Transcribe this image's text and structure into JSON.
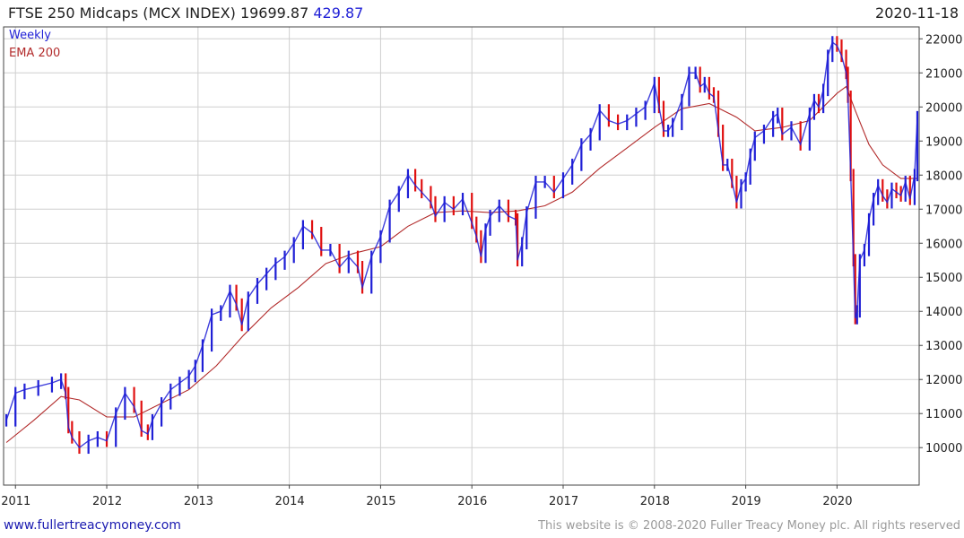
{
  "header": {
    "title": "FTSE 250 Midcaps (MCX INDEX)",
    "last_value": "19699.87",
    "change": "429.87",
    "date": "2020-11-18"
  },
  "legend": {
    "series_label": "Weekly",
    "ema_label": "EMA 200"
  },
  "footer": {
    "url": "www.fullertreacymoney.com",
    "copyright": "This website is © 2008-2020 Fuller Treacy Money plc. All rights reserved"
  },
  "colors": {
    "up": "#1f1fd6",
    "down": "#e01010",
    "ema": "#b22b2b",
    "grid": "#cfcfcf",
    "axis": "#444444"
  },
  "chart_data": {
    "type": "line",
    "interval": "weekly",
    "title": "FTSE 250 Midcaps (MCX INDEX)",
    "xlabel": "",
    "ylabel": "",
    "x_range": [
      2010.87,
      2020.9
    ],
    "y_range": [
      8900,
      22350
    ],
    "ylim": [
      8900,
      22350
    ],
    "y_ticks": [
      10000,
      11000,
      12000,
      13000,
      14000,
      15000,
      16000,
      17000,
      18000,
      19000,
      20000,
      21000,
      22000
    ],
    "x_ticks": [
      2011,
      2012,
      2013,
      2014,
      2015,
      2016,
      2017,
      2018,
      2019,
      2020
    ],
    "grid": true,
    "y_axis_side": "right",
    "legend_position": "top-left",
    "series": [
      {
        "name": "Weekly",
        "x": [
          2010.9,
          2011.0,
          2011.1,
          2011.25,
          2011.4,
          2011.5,
          2011.55,
          2011.58,
          2011.62,
          2011.7,
          2011.8,
          2011.9,
          2012.0,
          2012.1,
          2012.2,
          2012.3,
          2012.38,
          2012.45,
          2012.5,
          2012.6,
          2012.7,
          2012.8,
          2012.9,
          2012.97,
          2013.05,
          2013.15,
          2013.25,
          2013.35,
          2013.42,
          2013.48,
          2013.55,
          2013.65,
          2013.75,
          2013.85,
          2013.95,
          2014.05,
          2014.15,
          2014.25,
          2014.35,
          2014.45,
          2014.55,
          2014.65,
          2014.75,
          2014.8,
          2014.9,
          2015.0,
          2015.1,
          2015.2,
          2015.3,
          2015.38,
          2015.45,
          2015.55,
          2015.6,
          2015.7,
          2015.8,
          2015.9,
          2016.0,
          2016.05,
          2016.1,
          2016.15,
          2016.2,
          2016.3,
          2016.4,
          2016.48,
          2016.5,
          2016.55,
          2016.6,
          2016.7,
          2016.8,
          2016.9,
          2017.0,
          2017.1,
          2017.2,
          2017.3,
          2017.4,
          2017.5,
          2017.6,
          2017.7,
          2017.8,
          2017.9,
          2018.0,
          2018.05,
          2018.1,
          2018.15,
          2018.2,
          2018.3,
          2018.38,
          2018.45,
          2018.5,
          2018.55,
          2018.6,
          2018.65,
          2018.7,
          2018.75,
          2018.8,
          2018.85,
          2018.9,
          2018.95,
          2019.0,
          2019.05,
          2019.1,
          2019.2,
          2019.3,
          2019.35,
          2019.4,
          2019.5,
          2019.6,
          2019.7,
          2019.75,
          2019.8,
          2019.85,
          2019.9,
          2019.95,
          2020.0,
          2020.05,
          2020.1,
          2020.12,
          2020.15,
          2020.18,
          2020.2,
          2020.22,
          2020.25,
          2020.3,
          2020.35,
          2020.4,
          2020.45,
          2020.5,
          2020.55,
          2020.6,
          2020.65,
          2020.7,
          2020.75,
          2020.8,
          2020.85,
          2020.88
        ],
        "values": [
          10800,
          11600,
          11700,
          11800,
          11900,
          12000,
          11600,
          10600,
          10300,
          10000,
          10200,
          10300,
          10200,
          11000,
          11600,
          11200,
          10500,
          10400,
          10800,
          11300,
          11700,
          11900,
          12100,
          12400,
          13000,
          13900,
          14000,
          14600,
          14200,
          13600,
          14400,
          14800,
          15100,
          15400,
          15600,
          16000,
          16500,
          16300,
          15800,
          15800,
          15300,
          15600,
          15300,
          14700,
          15600,
          16200,
          17100,
          17500,
          18000,
          17700,
          17500,
          17200,
          16800,
          17200,
          17000,
          17300,
          16600,
          16200,
          15600,
          16400,
          16800,
          17100,
          16800,
          16700,
          15500,
          16000,
          16900,
          17800,
          17800,
          17500,
          17900,
          18300,
          18900,
          19200,
          19900,
          19600,
          19500,
          19600,
          19800,
          20000,
          20700,
          20000,
          19300,
          19300,
          19500,
          20200,
          21000,
          21000,
          20600,
          20700,
          20400,
          20300,
          19300,
          18300,
          18300,
          17800,
          17200,
          17700,
          17900,
          18600,
          19100,
          19300,
          19700,
          19800,
          19200,
          19400,
          18900,
          19800,
          20200,
          20000,
          20500,
          21500,
          21900,
          21800,
          21500,
          21000,
          20300,
          18000,
          15500,
          13800,
          14000,
          15500,
          15800,
          16700,
          17300,
          17700,
          17400,
          17200,
          17600,
          17500,
          17400,
          17800,
          17300,
          18000,
          19700
        ]
      },
      {
        "name": "EMA 200",
        "x": [
          2010.9,
          2011.2,
          2011.5,
          2011.7,
          2012.0,
          2012.3,
          2012.6,
          2012.9,
          2013.2,
          2013.5,
          2013.8,
          2014.1,
          2014.4,
          2014.7,
          2015.0,
          2015.3,
          2015.6,
          2015.9,
          2016.2,
          2016.5,
          2016.8,
          2017.1,
          2017.4,
          2017.7,
          2018.0,
          2018.3,
          2018.6,
          2018.9,
          2019.1,
          2019.4,
          2019.7,
          2020.0,
          2020.1,
          2020.2,
          2020.35,
          2020.5,
          2020.7,
          2020.88
        ],
        "values": [
          10150,
          10800,
          11500,
          11400,
          10900,
          10900,
          11300,
          11700,
          12400,
          13300,
          14100,
          14700,
          15400,
          15700,
          15900,
          16500,
          16900,
          16950,
          16900,
          16950,
          17100,
          17500,
          18200,
          18800,
          19400,
          19950,
          20100,
          19700,
          19300,
          19400,
          19600,
          20400,
          20600,
          19900,
          18900,
          18300,
          17900,
          17900
        ]
      }
    ]
  }
}
